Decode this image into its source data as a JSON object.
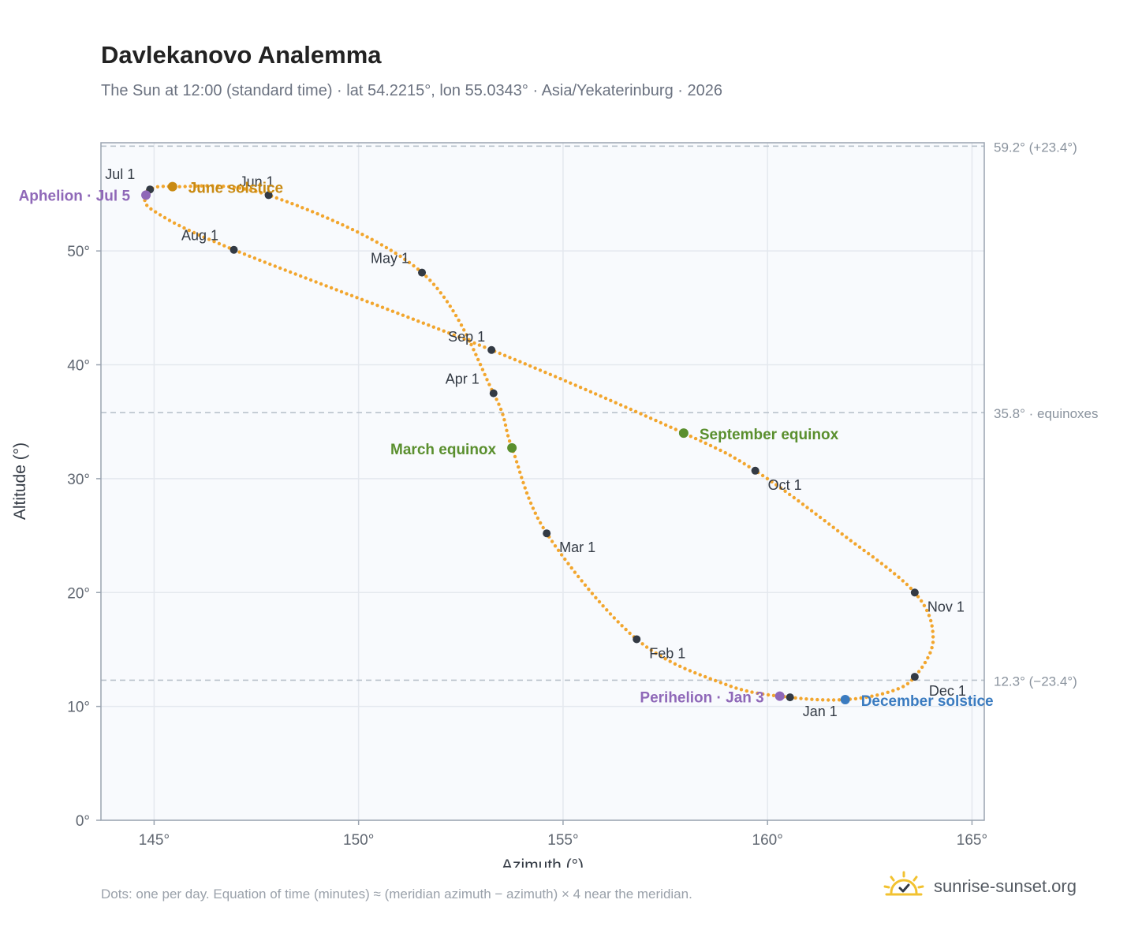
{
  "header": {
    "title": "Davlekanovo Analemma",
    "subtitle": "The Sun at 12:00 (standard time) · lat 54.2215°, lon 55.0343° · Asia/Yekaterinburg · 2026"
  },
  "footer": {
    "note": "Dots: one per day. Equation of time (minutes) ≈ (meridian azimuth − azimuth) × 4 near the meridian.",
    "brand": "sunrise-sunset.org"
  },
  "colors": {
    "curve": "#f2a62e",
    "month_dot": "#333a44",
    "june_solstice": "#c98a12",
    "december_solstice": "#3a7bc0",
    "equinox": "#5a8f2e",
    "apsis": "#8f68b8",
    "grid": "#e4e8ee",
    "plot_bg": "#f8fafd",
    "ref_line": "#b9c2cc",
    "axis": "#9aa4b0",
    "brand_sun": "#f2c230"
  },
  "chart_data": {
    "type": "scatter",
    "title": "",
    "xlabel": "Azimuth (°)",
    "ylabel": "Altitude (°)",
    "xlim": [
      143.7,
      165.3
    ],
    "ylim": [
      0,
      59.5
    ],
    "xticks": [
      145,
      150,
      155,
      160,
      165
    ],
    "yticks": [
      0,
      10,
      20,
      30,
      40,
      50
    ],
    "x_tick_labels": [
      "145°",
      "150°",
      "155°",
      "160°",
      "165°"
    ],
    "y_tick_labels": [
      "0°",
      "10°",
      "20°",
      "30°",
      "40°",
      "50°"
    ],
    "grid": true,
    "reference_lines": [
      {
        "y": 59.2,
        "label": "59.2° (+23.4°)"
      },
      {
        "y": 35.8,
        "label": "35.8° · equinoxes"
      },
      {
        "y": 12.3,
        "label": "12.3° (−23.4°)"
      }
    ],
    "month_markers": [
      {
        "label": "Jan 1",
        "x": 160.55,
        "y": 10.8
      },
      {
        "label": "Feb 1",
        "x": 156.8,
        "y": 15.9
      },
      {
        "label": "Mar 1",
        "x": 154.6,
        "y": 25.2
      },
      {
        "label": "Apr 1",
        "x": 153.3,
        "y": 37.5
      },
      {
        "label": "May 1",
        "x": 151.55,
        "y": 48.1
      },
      {
        "label": "Jun 1",
        "x": 147.8,
        "y": 54.9
      },
      {
        "label": "Jul 1",
        "x": 144.9,
        "y": 55.4
      },
      {
        "label": "Aug 1",
        "x": 146.95,
        "y": 50.1
      },
      {
        "label": "Sep 1",
        "x": 153.25,
        "y": 41.3
      },
      {
        "label": "Oct 1",
        "x": 159.7,
        "y": 30.7
      },
      {
        "label": "Nov 1",
        "x": 163.6,
        "y": 20.0
      },
      {
        "label": "Dec 1",
        "x": 163.6,
        "y": 12.6
      }
    ],
    "events": [
      {
        "label": "June solstice",
        "x": 145.45,
        "y": 55.65,
        "kind": "june_solstice"
      },
      {
        "label": "December solstice",
        "x": 161.9,
        "y": 10.6,
        "kind": "december_solstice"
      },
      {
        "label": "March equinox",
        "x": 153.75,
        "y": 32.7,
        "kind": "equinox"
      },
      {
        "label": "September equinox",
        "x": 157.95,
        "y": 34.0,
        "kind": "equinox"
      },
      {
        "label": "Aphelion · Jul 5",
        "x": 144.8,
        "y": 54.9,
        "kind": "apsis"
      },
      {
        "label": "Perihelion · Jan 3",
        "x": 160.3,
        "y": 10.9,
        "kind": "apsis"
      }
    ],
    "path_keypoints": [
      {
        "x": 160.55,
        "y": 10.8
      },
      {
        "x": 161.9,
        "y": 10.6
      },
      {
        "x": 163.0,
        "y": 11.3
      },
      {
        "x": 163.6,
        "y": 12.6
      },
      {
        "x": 164.05,
        "y": 15.9
      },
      {
        "x": 163.6,
        "y": 20.0
      },
      {
        "x": 161.8,
        "y": 25.2
      },
      {
        "x": 159.7,
        "y": 30.7
      },
      {
        "x": 157.95,
        "y": 34.0
      },
      {
        "x": 153.25,
        "y": 41.3
      },
      {
        "x": 146.95,
        "y": 50.1
      },
      {
        "x": 145.0,
        "y": 53.5
      },
      {
        "x": 144.8,
        "y": 54.9
      },
      {
        "x": 144.9,
        "y": 55.4
      },
      {
        "x": 145.45,
        "y": 55.65
      },
      {
        "x": 147.8,
        "y": 54.9
      },
      {
        "x": 151.55,
        "y": 48.1
      },
      {
        "x": 153.3,
        "y": 37.5
      },
      {
        "x": 153.75,
        "y": 32.7
      },
      {
        "x": 154.6,
        "y": 25.2
      },
      {
        "x": 156.8,
        "y": 15.9
      },
      {
        "x": 159.0,
        "y": 11.9
      },
      {
        "x": 160.55,
        "y": 10.8
      }
    ]
  }
}
